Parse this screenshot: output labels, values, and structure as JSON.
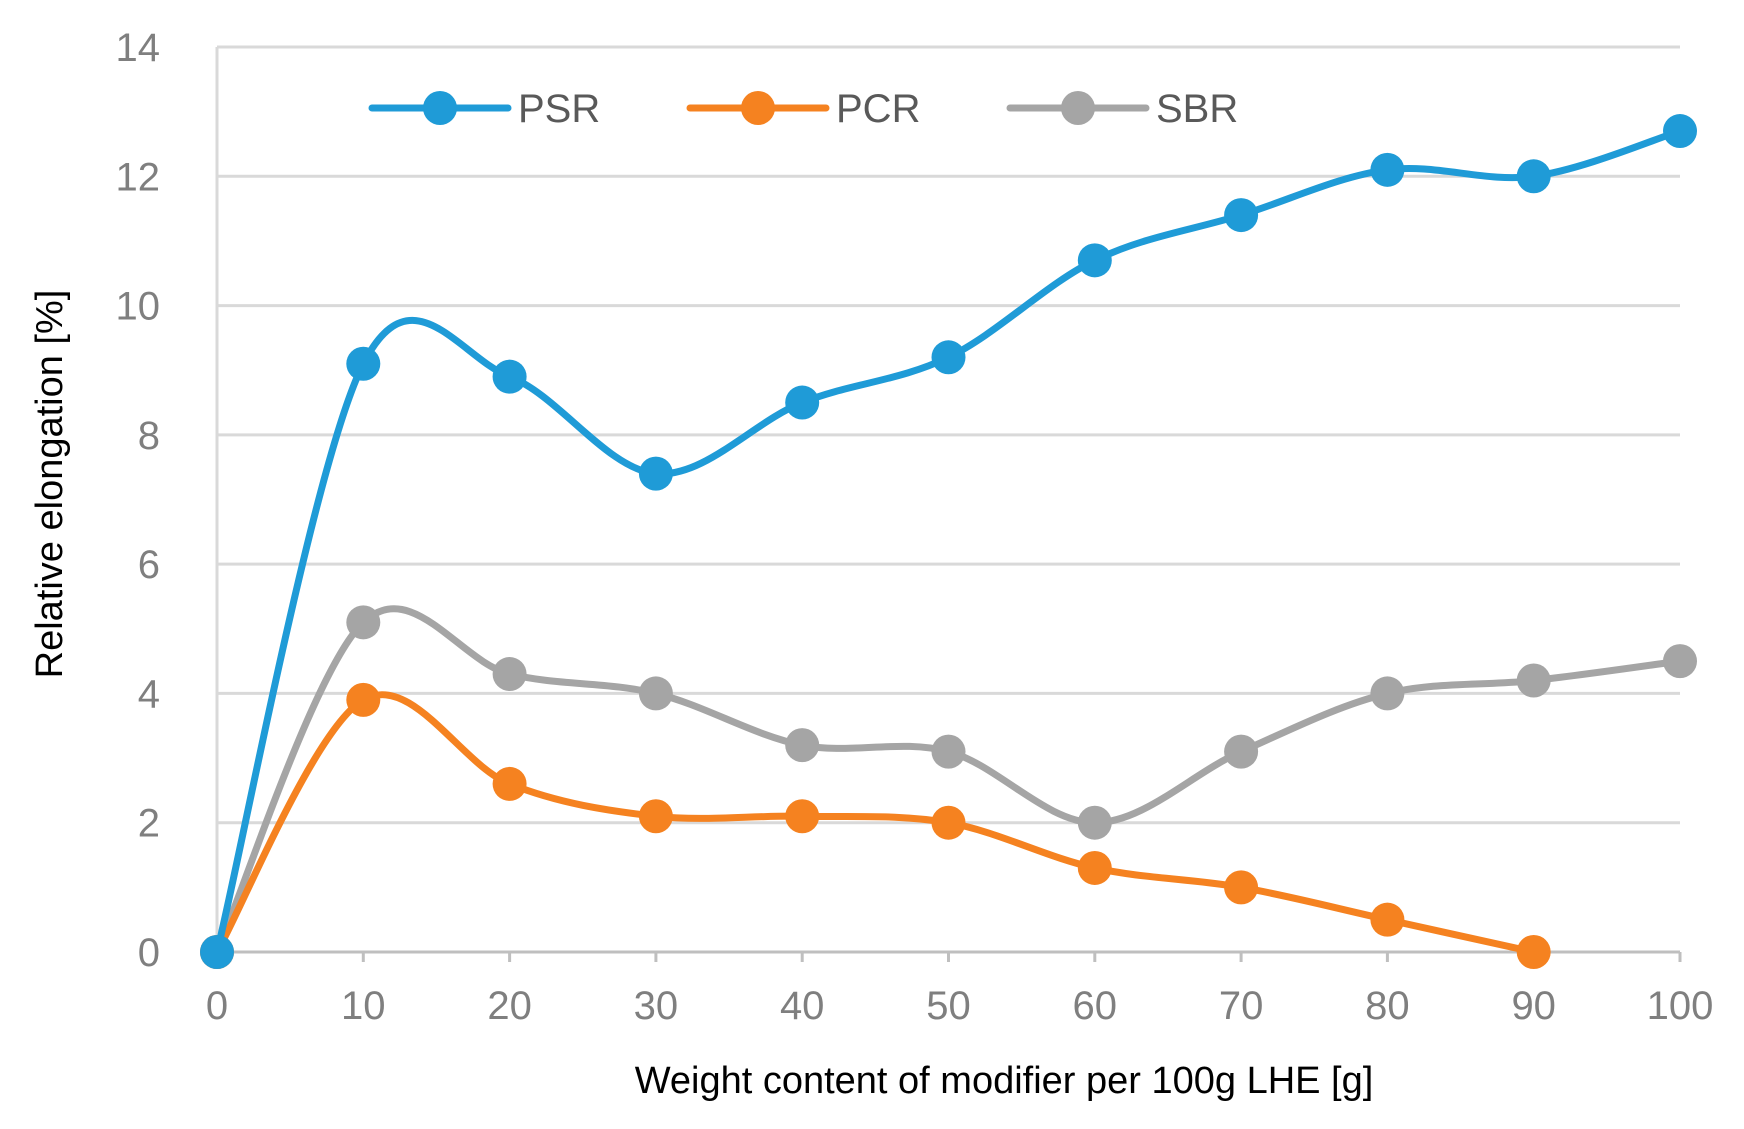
{
  "chart_data": {
    "type": "line",
    "title": "",
    "xlabel": "Weight content of modifier per 100g LHE [g]",
    "ylabel": "Relative  elongation  [%]",
    "xlim": [
      0,
      100
    ],
    "ylim": [
      0,
      14
    ],
    "x_ticks": [
      0,
      10,
      20,
      30,
      40,
      50,
      60,
      70,
      80,
      90,
      100
    ],
    "y_ticks": [
      0,
      2,
      4,
      6,
      8,
      10,
      12,
      14
    ],
    "grid": "horizontal",
    "legend_position": "top",
    "series": [
      {
        "name": "PSR",
        "color": "#1f9bd7",
        "x": [
          0,
          10,
          20,
          30,
          40,
          50,
          60,
          70,
          80,
          90,
          100
        ],
        "values": [
          0,
          9.1,
          8.9,
          7.4,
          8.5,
          9.2,
          10.7,
          11.4,
          12.1,
          12.0,
          12.7
        ]
      },
      {
        "name": "PCR",
        "color": "#f58220",
        "x": [
          0,
          10,
          20,
          30,
          40,
          50,
          60,
          70,
          80,
          90
        ],
        "values": [
          0,
          3.9,
          2.6,
          2.1,
          2.1,
          2.0,
          1.3,
          1.0,
          0.5,
          0
        ]
      },
      {
        "name": "SBR",
        "color": "#a5a5a5",
        "x": [
          0,
          10,
          20,
          30,
          40,
          50,
          60,
          70,
          80,
          90,
          100
        ],
        "values": [
          0,
          5.1,
          4.3,
          4.0,
          3.2,
          3.1,
          2.0,
          3.1,
          4.0,
          4.2,
          4.5
        ]
      }
    ]
  }
}
